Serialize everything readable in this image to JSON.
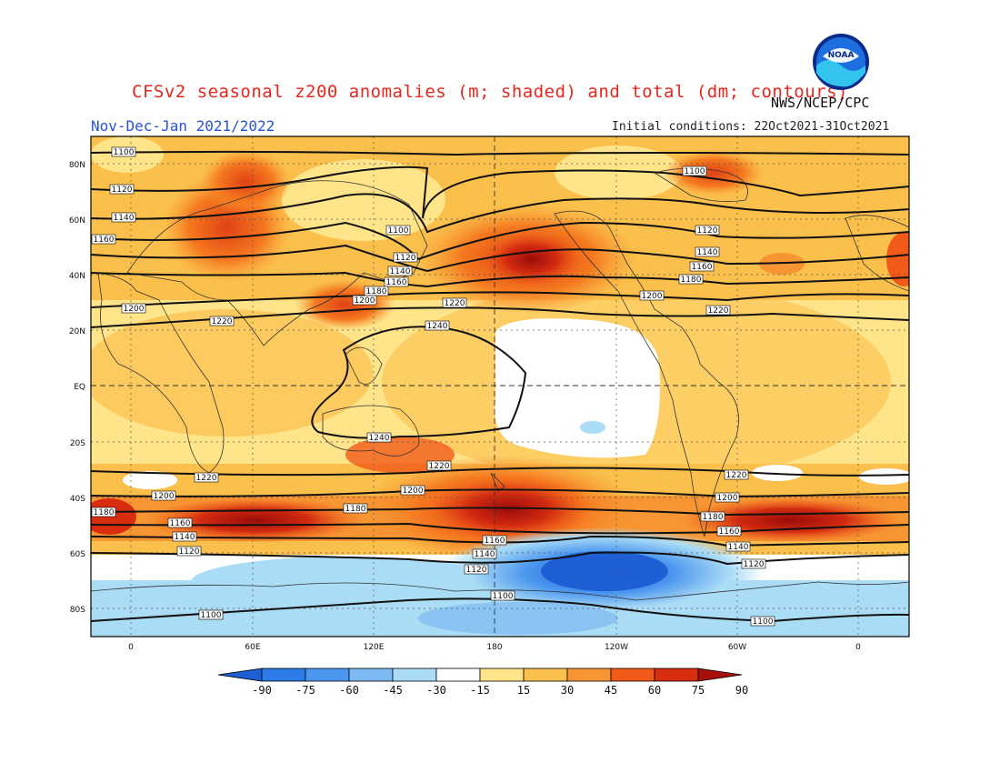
{
  "header": {
    "title": "CFSv2 seasonal z200 anomalies (m; shaded) and total (dm; contours)",
    "season": "Nov-Dec-Jan 2021/2022",
    "agency": "NWS/NCEP/CPC",
    "initial_conditions": "Initial conditions: 22Oct2021-31Oct2021",
    "logo_text": "NOAA"
  },
  "map": {
    "lat_labels": [
      "80N",
      "60N",
      "40N",
      "20N",
      "EQ",
      "20S",
      "40S",
      "60S",
      "80S"
    ],
    "lon_labels": [
      "0",
      "60E",
      "120E",
      "180",
      "120W",
      "60W",
      "0"
    ],
    "contour_labels": [
      "1100",
      "1120",
      "1140",
      "1160",
      "1180",
      "1200",
      "1220",
      "1240"
    ]
  },
  "colorbar": {
    "levels": [
      "-90",
      "-75",
      "-60",
      "-45",
      "-30",
      "-15",
      "15",
      "30",
      "45",
      "60",
      "75",
      "90"
    ],
    "colors": [
      "#1e5fd6",
      "#2c7be8",
      "#4b96ee",
      "#7db9f2",
      "#aadcf6",
      "#ffffff",
      "#ffe48a",
      "#fbbf4b",
      "#f79532",
      "#f15a18",
      "#d92d10",
      "#a80f0b"
    ]
  }
}
